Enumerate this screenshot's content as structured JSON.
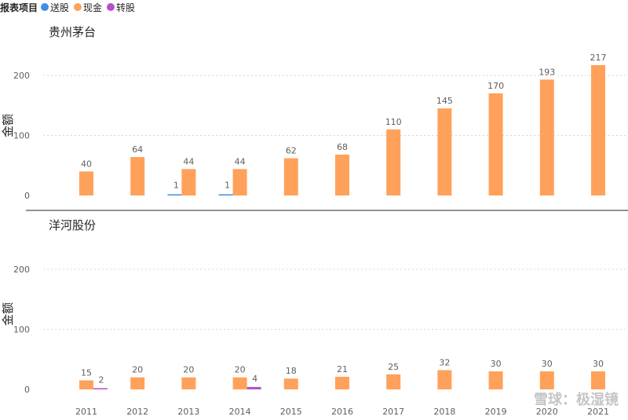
{
  "legend": {
    "title": "报表项目",
    "items": [
      {
        "name": "送股",
        "color": "#3e8ee8"
      },
      {
        "name": "现金",
        "color": "#ffa15a"
      },
      {
        "name": "转股",
        "color": "#b452c8"
      }
    ]
  },
  "watermark": "雪球：极湿镜",
  "chart_data": [
    {
      "type": "bar",
      "title": "贵州茅台",
      "ylabel": "金额",
      "ylim": [
        0,
        230
      ],
      "yticks": [
        0,
        100,
        200
      ],
      "categories": [
        "2011",
        "2012",
        "2013",
        "2014",
        "2015",
        "2016",
        "2017",
        "2018",
        "2019",
        "2020",
        "2021"
      ],
      "series": [
        {
          "name": "送股",
          "color": "#3e8ee8",
          "values": [
            null,
            null,
            1,
            1,
            null,
            null,
            null,
            null,
            null,
            null,
            null
          ]
        },
        {
          "name": "现金",
          "color": "#ffa15a",
          "values": [
            40,
            64,
            44,
            44,
            62,
            68,
            110,
            145,
            170,
            193,
            217
          ]
        },
        {
          "name": "转股",
          "color": "#b452c8",
          "values": [
            null,
            null,
            null,
            null,
            null,
            null,
            null,
            null,
            null,
            null,
            null
          ]
        }
      ]
    },
    {
      "type": "bar",
      "title": "洋河股份",
      "ylabel": "金额",
      "ylim": [
        0,
        230
      ],
      "yticks": [
        0,
        100,
        200
      ],
      "categories": [
        "2011",
        "2012",
        "2013",
        "2014",
        "2015",
        "2016",
        "2017",
        "2018",
        "2019",
        "2020",
        "2021"
      ],
      "series": [
        {
          "name": "送股",
          "color": "#3e8ee8",
          "values": [
            null,
            null,
            null,
            null,
            null,
            null,
            null,
            null,
            null,
            null,
            null
          ]
        },
        {
          "name": "现金",
          "color": "#ffa15a",
          "values": [
            15,
            20,
            20,
            20,
            18,
            21,
            25,
            32,
            30,
            30,
            30
          ]
        },
        {
          "name": "转股",
          "color": "#b452c8",
          "values": [
            2,
            null,
            null,
            4,
            null,
            null,
            null,
            null,
            null,
            null,
            null
          ]
        }
      ]
    }
  ]
}
